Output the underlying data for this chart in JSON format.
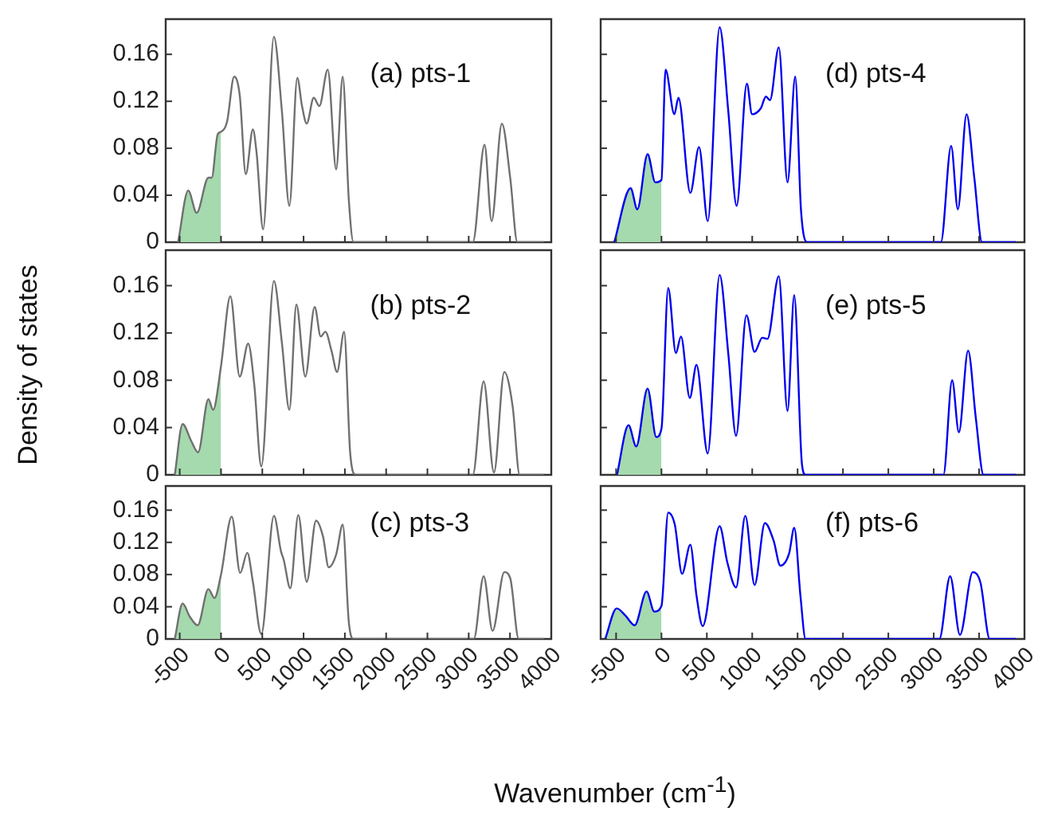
{
  "chart_data": [
    {
      "type": "line",
      "annotations": [
        "(a) pts-1"
      ],
      "xlim": [
        -670,
        4000
      ],
      "ylim": [
        0,
        0.19
      ],
      "xticks": [
        -500,
        0,
        500,
        1000,
        1500,
        2000,
        2500,
        3000,
        3500,
        4000
      ],
      "yticks": [
        0,
        0.04,
        0.08,
        0.12,
        0.16
      ],
      "tick_labels": "y",
      "series": [
        {
          "type": "area",
          "color": "#a5d9ae",
          "x": [
            -520,
            -397,
            -295,
            -153,
            -113,
            -40,
            0
          ],
          "values": [
            0,
            0.044,
            0.025,
            0.055,
            0.055,
            0.092,
            0.094
          ]
        },
        {
          "color": "#707070",
          "x": [
            -520,
            -397,
            -295,
            -153,
            -113,
            -40,
            0,
            74,
            159,
            227,
            300,
            386,
            431,
            510,
            640,
            737,
            828,
            924,
            981,
            1038,
            1123,
            1191,
            1293,
            1395,
            1474,
            1548,
            1605,
            3050,
            3192,
            3277,
            3402,
            3504,
            3589,
            3900
          ],
          "values": [
            0,
            0.044,
            0.025,
            0.055,
            0.055,
            0.092,
            0.094,
            0.103,
            0.141,
            0.125,
            0.058,
            0.096,
            0.076,
            0.011,
            0.175,
            0.112,
            0.031,
            0.14,
            0.116,
            0.101,
            0.123,
            0.116,
            0.147,
            0.062,
            0.141,
            0.036,
            0,
            0,
            0.083,
            0.018,
            0.101,
            0.054,
            0,
            0
          ]
        }
      ]
    },
    {
      "type": "line",
      "annotations": [
        "(d) pts-4"
      ],
      "xlim": [
        -670,
        4000
      ],
      "ylim": [
        0,
        0.19
      ],
      "xticks": [
        -500,
        0,
        500,
        1000,
        1500,
        2000,
        2500,
        3000,
        3500,
        4000
      ],
      "yticks": [
        0,
        0.04,
        0.08,
        0.12,
        0.16
      ],
      "tick_labels": false,
      "series": [
        {
          "type": "area",
          "color": "#a5d9ae",
          "x": [
            -520,
            -340,
            -266,
            -153,
            -68,
            0
          ],
          "values": [
            0,
            0.046,
            0.028,
            0.075,
            0.051,
            0.053
          ]
        },
        {
          "color": "#0000ee",
          "x": [
            -520,
            -340,
            -266,
            -153,
            -68,
            0,
            45,
            142,
            187,
            318,
            414,
            510,
            641,
            737,
            828,
            941,
            998,
            1094,
            1151,
            1196,
            1293,
            1389,
            1474,
            1537,
            1605,
            3079,
            3192,
            3266,
            3362,
            3447,
            3532,
            3900
          ],
          "values": [
            0,
            0.046,
            0.028,
            0.075,
            0.051,
            0.053,
            0.147,
            0.109,
            0.123,
            0.042,
            0.081,
            0.018,
            0.183,
            0.111,
            0.031,
            0.135,
            0.109,
            0.114,
            0.124,
            0.121,
            0.166,
            0.051,
            0.141,
            0.028,
            0,
            0,
            0.082,
            0.028,
            0.109,
            0.055,
            0,
            0
          ]
        }
      ]
    },
    {
      "type": "line",
      "annotations": [
        "(b) pts-2"
      ],
      "ylabel": "Density of states",
      "xlim": [
        -670,
        4000
      ],
      "ylim": [
        0,
        0.19
      ],
      "xticks": [
        -500,
        0,
        500,
        1000,
        1500,
        2000,
        2500,
        3000,
        3500,
        4000
      ],
      "yticks": [
        0,
        0.04,
        0.08,
        0.12,
        0.16
      ],
      "tick_labels": "y",
      "series": [
        {
          "type": "area",
          "color": "#a5d9ae",
          "x": [
            -560,
            -465,
            -363,
            -278,
            -153,
            -96,
            0
          ],
          "values": [
            0,
            0.043,
            0.029,
            0.019,
            0.064,
            0.055,
            0.092
          ]
        },
        {
          "color": "#707070",
          "x": [
            -560,
            -465,
            -363,
            -278,
            -153,
            -96,
            0,
            113,
            227,
            329,
            403,
            488,
            641,
            737,
            828,
            913,
            1021,
            1134,
            1208,
            1264,
            1338,
            1406,
            1491,
            1565,
            1633,
            3050,
            3181,
            3306,
            3431,
            3532,
            3617,
            3900
          ],
          "values": [
            0,
            0.043,
            0.029,
            0.019,
            0.064,
            0.055,
            0.092,
            0.151,
            0.083,
            0.111,
            0.076,
            0.007,
            0.164,
            0.112,
            0.055,
            0.144,
            0.083,
            0.142,
            0.117,
            0.121,
            0.105,
            0.087,
            0.121,
            0.018,
            0,
            0,
            0.079,
            0.002,
            0.087,
            0.058,
            0,
            0
          ]
        }
      ]
    },
    {
      "type": "line",
      "annotations": [
        "(e) pts-5"
      ],
      "xlim": [
        -670,
        4000
      ],
      "ylim": [
        0,
        0.19
      ],
      "xticks": [
        -500,
        0,
        500,
        1000,
        1500,
        2000,
        2500,
        3000,
        3500,
        4000
      ],
      "yticks": [
        0,
        0.04,
        0.08,
        0.12,
        0.16
      ],
      "tick_labels": false,
      "series": [
        {
          "type": "area",
          "color": "#a5d9ae",
          "x": [
            -490,
            -363,
            -278,
            -153,
            -57,
            0
          ],
          "values": [
            0,
            0.042,
            0.024,
            0.073,
            0.032,
            0.039
          ]
        },
        {
          "color": "#0000ee",
          "x": [
            -490,
            -363,
            -278,
            -153,
            -57,
            0,
            74,
            159,
            215,
            312,
            386,
            510,
            641,
            737,
            822,
            936,
            1026,
            1111,
            1168,
            1293,
            1389,
            1463,
            1548,
            1588,
            3107,
            3203,
            3277,
            3379,
            3464,
            3549,
            3900
          ],
          "values": [
            0,
            0.042,
            0.024,
            0.073,
            0.032,
            0.039,
            0.158,
            0.103,
            0.117,
            0.065,
            0.093,
            0.018,
            0.169,
            0.102,
            0.033,
            0.135,
            0.104,
            0.116,
            0.115,
            0.168,
            0.054,
            0.152,
            0.009,
            0,
            0,
            0.08,
            0.036,
            0.105,
            0.048,
            0,
            0
          ]
        }
      ]
    },
    {
      "type": "line",
      "annotations": [
        "(c) pts-3"
      ],
      "xlabel": "Wavenumber (cm$^{-1}$)",
      "xlim": [
        -670,
        4000
      ],
      "ylim": [
        0,
        0.19
      ],
      "xticks": [
        -500,
        0,
        500,
        1000,
        1500,
        2000,
        2500,
        3000,
        3500,
        4000
      ],
      "yticks": [
        0,
        0.04,
        0.08,
        0.12,
        0.16
      ],
      "series": [
        {
          "type": "area",
          "color": "#a5d9ae",
          "x": [
            -560,
            -465,
            -380,
            -283,
            -153,
            -79,
            0
          ],
          "values": [
            0,
            0.044,
            0.028,
            0.017,
            0.062,
            0.051,
            0.08
          ]
        },
        {
          "color": "#707070",
          "x": [
            -560,
            -465,
            -380,
            -283,
            -153,
            -79,
            0,
            130,
            232,
            318,
            386,
            488,
            641,
            726,
            760,
            839,
            936,
            1038,
            1151,
            1236,
            1304,
            1395,
            1474,
            1548,
            1605,
            3062,
            3181,
            3289,
            3431,
            3504,
            3606,
            3900
          ],
          "values": [
            0,
            0.044,
            0.028,
            0.017,
            0.062,
            0.051,
            0.08,
            0.152,
            0.082,
            0.107,
            0.071,
            0.006,
            0.153,
            0.109,
            0.098,
            0.063,
            0.154,
            0.071,
            0.147,
            0.127,
            0.089,
            0.105,
            0.142,
            0.021,
            0,
            0,
            0.078,
            0.01,
            0.083,
            0.075,
            0,
            0
          ]
        }
      ]
    },
    {
      "type": "line",
      "annotations": [
        "(f) pts-6"
      ],
      "xlim": [
        -670,
        4000
      ],
      "ylim": [
        0,
        0.19
      ],
      "xticks": [
        -500,
        0,
        500,
        1000,
        1500,
        2000,
        2500,
        3000,
        3500,
        4000
      ],
      "yticks": [
        0,
        0.04,
        0.08,
        0.12,
        0.16
      ],
      "tick_labels": "x",
      "series": [
        {
          "type": "area",
          "color": "#a5d9ae",
          "x": [
            -620,
            -493,
            -397,
            -295,
            -164,
            -79,
            0
          ],
          "values": [
            0,
            0.038,
            0.029,
            0.017,
            0.059,
            0.034,
            0.041
          ]
        },
        {
          "color": "#0000ee",
          "x": [
            -620,
            -493,
            -397,
            -295,
            -164,
            -79,
            0,
            74,
            147,
            227,
            318,
            386,
            454,
            641,
            726,
            822,
            924,
            1026,
            1140,
            1236,
            1310,
            1406,
            1463,
            1531,
            1588,
            3062,
            3181,
            3289,
            3430,
            3515,
            3617,
            3900
          ],
          "values": [
            0,
            0.038,
            0.029,
            0.017,
            0.059,
            0.034,
            0.041,
            0.157,
            0.142,
            0.081,
            0.117,
            0.054,
            0.016,
            0.14,
            0.095,
            0.064,
            0.153,
            0.067,
            0.144,
            0.122,
            0.091,
            0.106,
            0.138,
            0.054,
            0,
            0,
            0.078,
            0.005,
            0.083,
            0.07,
            0,
            0
          ]
        }
      ]
    }
  ]
}
